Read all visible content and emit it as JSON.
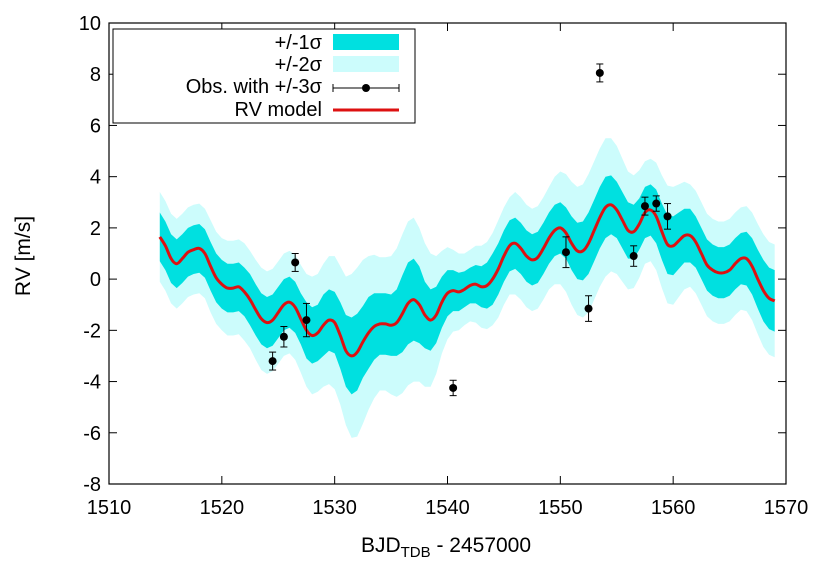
{
  "chart_data": {
    "type": "line",
    "xlabel_main": "BJD",
    "xlabel_sub": "TDB",
    "xlabel_tail": " - 2457000",
    "ylabel": "RV [m/s]",
    "xlim": [
      1510,
      1570
    ],
    "ylim": [
      -8,
      10
    ],
    "xticks": [
      1510,
      1520,
      1530,
      1540,
      1550,
      1560,
      1570
    ],
    "yticks": [
      -8,
      -6,
      -4,
      -2,
      0,
      2,
      4,
      6,
      8,
      10
    ],
    "grid": false,
    "legend_position": "top-left",
    "legend": [
      {
        "label": "+/-1σ",
        "kind": "band1"
      },
      {
        "label": "+/-2σ",
        "kind": "band2"
      },
      {
        "label": "Obs. with +/-3σ",
        "kind": "points"
      },
      {
        "label": "RV model",
        "kind": "line"
      }
    ],
    "colors": {
      "band1": "#00e0e0",
      "band2": "#ccfcfc",
      "model": "#dd1111",
      "points": "#000000"
    },
    "model": {
      "x": [
        1514.5,
        1515.0,
        1515.5,
        1516.0,
        1516.5,
        1517.0,
        1517.5,
        1518.0,
        1518.5,
        1519.0,
        1519.5,
        1520.0,
        1520.5,
        1521.0,
        1521.5,
        1522.0,
        1522.5,
        1523.0,
        1523.5,
        1524.0,
        1524.5,
        1525.0,
        1525.5,
        1526.0,
        1526.5,
        1527.0,
        1527.5,
        1528.0,
        1528.5,
        1529.0,
        1529.5,
        1530.0,
        1530.5,
        1531.0,
        1531.5,
        1532.0,
        1532.5,
        1533.0,
        1533.5,
        1534.0,
        1534.5,
        1535.0,
        1535.5,
        1536.0,
        1536.5,
        1537.0,
        1537.5,
        1538.0,
        1538.5,
        1539.0,
        1539.5,
        1540.0,
        1540.5,
        1541.0,
        1541.5,
        1542.0,
        1542.5,
        1543.0,
        1543.5,
        1544.0,
        1544.5,
        1545.0,
        1545.5,
        1546.0,
        1546.5,
        1547.0,
        1547.5,
        1548.0,
        1548.5,
        1549.0,
        1549.5,
        1550.0,
        1550.5,
        1551.0,
        1551.5,
        1552.0,
        1552.5,
        1553.0,
        1553.5,
        1554.0,
        1554.5,
        1555.0,
        1555.5,
        1556.0,
        1556.5,
        1557.0,
        1557.5,
        1558.0,
        1558.5,
        1559.0,
        1559.5,
        1560.0,
        1560.5,
        1561.0,
        1561.5,
        1562.0,
        1562.5,
        1563.0,
        1563.5,
        1564.0,
        1564.5,
        1565.0,
        1565.5,
        1566.0,
        1566.5,
        1567.0,
        1567.5,
        1568.0,
        1568.5,
        1569.0
      ],
      "y": [
        1.65,
        1.3,
        0.8,
        0.6,
        0.8,
        1.05,
        1.15,
        1.2,
        1.0,
        0.5,
        0.05,
        -0.2,
        -0.35,
        -0.35,
        -0.3,
        -0.5,
        -0.8,
        -1.2,
        -1.55,
        -1.7,
        -1.6,
        -1.3,
        -1.0,
        -0.9,
        -1.1,
        -1.55,
        -2.0,
        -2.2,
        -2.1,
        -1.8,
        -1.6,
        -1.7,
        -2.2,
        -2.8,
        -3.0,
        -2.85,
        -2.45,
        -2.1,
        -1.85,
        -1.75,
        -1.75,
        -1.8,
        -1.7,
        -1.35,
        -0.95,
        -0.8,
        -1.0,
        -1.4,
        -1.6,
        -1.4,
        -0.9,
        -0.55,
        -0.45,
        -0.5,
        -0.4,
        -0.25,
        -0.2,
        -0.3,
        -0.25,
        0.0,
        0.4,
        0.9,
        1.3,
        1.4,
        1.2,
        0.9,
        0.75,
        0.85,
        1.2,
        1.6,
        1.9,
        2.0,
        1.8,
        1.4,
        1.1,
        1.1,
        1.4,
        1.9,
        2.4,
        2.8,
        2.9,
        2.7,
        2.3,
        1.9,
        1.85,
        2.15,
        2.6,
        2.7,
        2.45,
        1.85,
        1.35,
        1.3,
        1.5,
        1.7,
        1.7,
        1.45,
        1.0,
        0.55,
        0.35,
        0.25,
        0.25,
        0.35,
        0.6,
        0.8,
        0.8,
        0.5,
        0.0,
        -0.45,
        -0.75,
        -0.85
      ],
      "sigma1": [
        0.95,
        0.95,
        0.95,
        0.95,
        0.95,
        0.95,
        0.95,
        0.95,
        0.95,
        0.95,
        0.95,
        0.95,
        0.95,
        0.95,
        0.95,
        0.95,
        1.0,
        1.0,
        1.0,
        1.0,
        1.0,
        1.0,
        1.0,
        1.0,
        1.0,
        1.0,
        1.1,
        1.1,
        1.1,
        1.2,
        1.2,
        1.2,
        1.3,
        1.4,
        1.5,
        1.5,
        1.4,
        1.4,
        1.3,
        1.2,
        1.2,
        1.2,
        1.3,
        1.5,
        1.6,
        1.6,
        1.5,
        1.3,
        1.2,
        1.1,
        1.0,
        0.9,
        0.8,
        0.75,
        0.7,
        0.7,
        0.75,
        0.8,
        0.9,
        1.0,
        1.0,
        1.0,
        1.0,
        1.0,
        1.0,
        1.0,
        1.0,
        1.0,
        1.0,
        1.0,
        1.0,
        1.0,
        1.0,
        1.05,
        1.1,
        1.15,
        1.2,
        1.2,
        1.2,
        1.2,
        1.15,
        1.1,
        1.1,
        1.1,
        1.05,
        1.0,
        1.0,
        1.0,
        1.05,
        1.1,
        1.15,
        1.15,
        1.1,
        1.05,
        1.05,
        1.0,
        1.0,
        1.0,
        1.0,
        1.0,
        1.0,
        1.0,
        1.0,
        1.0,
        1.05,
        1.1,
        1.15,
        1.2,
        1.2,
        1.2
      ],
      "sigma2": [
        1.75,
        1.75,
        1.75,
        1.75,
        1.75,
        1.75,
        1.75,
        1.75,
        1.75,
        1.8,
        1.8,
        1.8,
        1.85,
        1.85,
        1.85,
        1.9,
        1.9,
        1.95,
        2.0,
        2.0,
        2.0,
        2.0,
        2.0,
        2.0,
        2.05,
        2.1,
        2.2,
        2.3,
        2.3,
        2.4,
        2.5,
        2.6,
        2.7,
        2.9,
        3.2,
        3.3,
        3.2,
        3.0,
        2.8,
        2.6,
        2.6,
        2.7,
        2.9,
        3.1,
        3.2,
        3.2,
        3.0,
        2.8,
        2.6,
        2.3,
        2.0,
        1.8,
        1.6,
        1.5,
        1.4,
        1.4,
        1.5,
        1.6,
        1.7,
        1.8,
        1.9,
        1.9,
        1.9,
        2.0,
        2.0,
        2.0,
        2.0,
        2.0,
        2.0,
        2.0,
        2.1,
        2.2,
        2.3,
        2.4,
        2.5,
        2.6,
        2.7,
        2.7,
        2.7,
        2.7,
        2.6,
        2.5,
        2.4,
        2.3,
        2.2,
        2.1,
        2.0,
        2.0,
        2.1,
        2.2,
        2.3,
        2.3,
        2.2,
        2.1,
        2.0,
        2.0,
        2.0,
        2.0,
        2.0,
        2.0,
        2.0,
        2.0,
        2.0,
        2.0,
        2.05,
        2.1,
        2.15,
        2.2,
        2.2,
        2.2
      ]
    },
    "observations": [
      {
        "x": 1524.5,
        "y": -3.2,
        "err": 0.35
      },
      {
        "x": 1525.5,
        "y": -2.25,
        "err": 0.4
      },
      {
        "x": 1526.5,
        "y": 0.65,
        "err": 0.35
      },
      {
        "x": 1527.5,
        "y": -1.6,
        "err": 0.65
      },
      {
        "x": 1540.5,
        "y": -4.25,
        "err": 0.3
      },
      {
        "x": 1550.5,
        "y": 1.05,
        "err": 0.6
      },
      {
        "x": 1552.5,
        "y": -1.15,
        "err": 0.5
      },
      {
        "x": 1553.5,
        "y": 8.05,
        "err": 0.35
      },
      {
        "x": 1556.5,
        "y": 0.9,
        "err": 0.4
      },
      {
        "x": 1557.5,
        "y": 2.85,
        "err": 0.35
      },
      {
        "x": 1558.5,
        "y": 2.95,
        "err": 0.3
      },
      {
        "x": 1559.5,
        "y": 2.45,
        "err": 0.5
      }
    ]
  }
}
